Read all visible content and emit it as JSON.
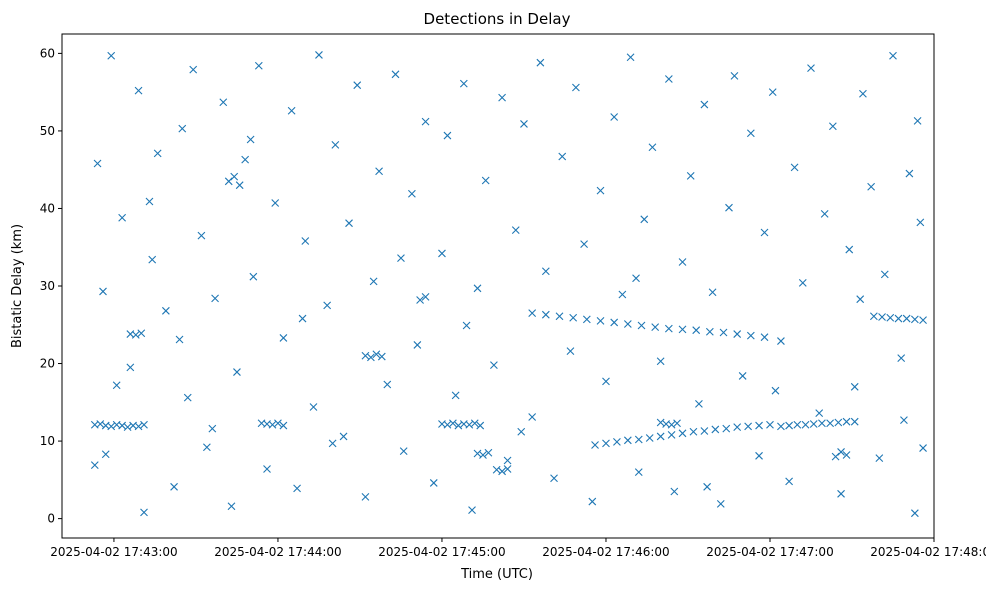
{
  "chart_data": {
    "type": "scatter",
    "title": "Detections in Delay",
    "xlabel": "Time (UTC)",
    "ylabel": "Bistatic Delay (km)",
    "marker": "x",
    "color": "#1f77b4",
    "grid": false,
    "legend": "none",
    "x_axis_type": "datetime",
    "xlim": [
      "2025-04-02 17:42:41",
      "2025-04-02 17:48:00"
    ],
    "ylim": [
      -2.5,
      62.5
    ],
    "x_ticks": [
      "2025-04-02 17:43:00",
      "2025-04-02 17:44:00",
      "2025-04-02 17:45:00",
      "2025-04-02 17:46:00",
      "2025-04-02 17:47:00",
      "2025-04-02 17:48:00"
    ],
    "y_ticks": [
      "0",
      "10",
      "20",
      "30",
      "40",
      "50",
      "60"
    ],
    "series": [
      {
        "points": [
          [
            "2025-04-02 17:42:53",
            12.1
          ],
          [
            "2025-04-02 17:42:55",
            12.2
          ],
          [
            "2025-04-02 17:42:57",
            12.0
          ],
          [
            "2025-04-02 17:42:59",
            11.9
          ],
          [
            "2025-04-02 17:43:01",
            12.1
          ],
          [
            "2025-04-02 17:43:03",
            12.0
          ],
          [
            "2025-04-02 17:43:05",
            11.8
          ],
          [
            "2025-04-02 17:43:07",
            12.0
          ],
          [
            "2025-04-02 17:43:09",
            11.9
          ],
          [
            "2025-04-02 17:43:11",
            12.1
          ],
          [
            "2025-04-02 17:43:54",
            12.3
          ],
          [
            "2025-04-02 17:43:56",
            12.2
          ],
          [
            "2025-04-02 17:43:58",
            12.1
          ],
          [
            "2025-04-02 17:44:00",
            12.3
          ],
          [
            "2025-04-02 17:44:02",
            12.0
          ],
          [
            "2025-04-02 17:45:00",
            12.2
          ],
          [
            "2025-04-02 17:45:02",
            12.1
          ],
          [
            "2025-04-02 17:45:04",
            12.3
          ],
          [
            "2025-04-02 17:45:06",
            12.0
          ],
          [
            "2025-04-02 17:45:08",
            12.2
          ],
          [
            "2025-04-02 17:45:10",
            12.1
          ],
          [
            "2025-04-02 17:45:12",
            12.3
          ],
          [
            "2025-04-02 17:45:14",
            12.0
          ],
          [
            "2025-04-02 17:46:20",
            12.4
          ],
          [
            "2025-04-02 17:46:22",
            12.2
          ],
          [
            "2025-04-02 17:46:24",
            12.1
          ],
          [
            "2025-04-02 17:46:26",
            12.3
          ],
          [
            "2025-04-02 17:47:04",
            11.9
          ],
          [
            "2025-04-02 17:47:07",
            12.0
          ],
          [
            "2025-04-02 17:47:10",
            12.1
          ],
          [
            "2025-04-02 17:47:13",
            12.1
          ],
          [
            "2025-04-02 17:47:16",
            12.2
          ],
          [
            "2025-04-02 17:47:19",
            12.3
          ],
          [
            "2025-04-02 17:47:22",
            12.3
          ],
          [
            "2025-04-02 17:47:25",
            12.4
          ],
          [
            "2025-04-02 17:47:28",
            12.5
          ],
          [
            "2025-04-02 17:47:31",
            12.5
          ],
          [
            "2025-04-02 17:45:33",
            26.5
          ],
          [
            "2025-04-02 17:45:38",
            26.3
          ],
          [
            "2025-04-02 17:45:43",
            26.1
          ],
          [
            "2025-04-02 17:45:48",
            25.9
          ],
          [
            "2025-04-02 17:45:53",
            25.7
          ],
          [
            "2025-04-02 17:45:58",
            25.5
          ],
          [
            "2025-04-02 17:46:03",
            25.3
          ],
          [
            "2025-04-02 17:46:08",
            25.1
          ],
          [
            "2025-04-02 17:46:13",
            24.9
          ],
          [
            "2025-04-02 17:46:18",
            24.7
          ],
          [
            "2025-04-02 17:46:23",
            24.5
          ],
          [
            "2025-04-02 17:46:28",
            24.4
          ],
          [
            "2025-04-02 17:46:33",
            24.3
          ],
          [
            "2025-04-02 17:46:38",
            24.1
          ],
          [
            "2025-04-02 17:46:43",
            24.0
          ],
          [
            "2025-04-02 17:46:48",
            23.8
          ],
          [
            "2025-04-02 17:46:53",
            23.6
          ],
          [
            "2025-04-02 17:46:58",
            23.4
          ],
          [
            "2025-04-02 17:45:56",
            9.5
          ],
          [
            "2025-04-02 17:46:00",
            9.7
          ],
          [
            "2025-04-02 17:46:04",
            9.9
          ],
          [
            "2025-04-02 17:46:08",
            10.1
          ],
          [
            "2025-04-02 17:46:12",
            10.2
          ],
          [
            "2025-04-02 17:46:16",
            10.4
          ],
          [
            "2025-04-02 17:46:20",
            10.6
          ],
          [
            "2025-04-02 17:46:24",
            10.8
          ],
          [
            "2025-04-02 17:46:28",
            11.0
          ],
          [
            "2025-04-02 17:46:32",
            11.2
          ],
          [
            "2025-04-02 17:46:36",
            11.3
          ],
          [
            "2025-04-02 17:46:40",
            11.5
          ],
          [
            "2025-04-02 17:46:44",
            11.6
          ],
          [
            "2025-04-02 17:46:48",
            11.8
          ],
          [
            "2025-04-02 17:46:52",
            11.9
          ],
          [
            "2025-04-02 17:46:56",
            12.0
          ],
          [
            "2025-04-02 17:47:00",
            12.1
          ],
          [
            "2025-04-02 17:47:38",
            26.1
          ],
          [
            "2025-04-02 17:47:41",
            26.0
          ],
          [
            "2025-04-02 17:47:44",
            25.9
          ],
          [
            "2025-04-02 17:47:47",
            25.8
          ],
          [
            "2025-04-02 17:47:50",
            25.8
          ],
          [
            "2025-04-02 17:47:53",
            25.7
          ],
          [
            "2025-04-02 17:47:56",
            25.6
          ],
          [
            "2025-04-02 17:44:32",
            21.0
          ],
          [
            "2025-04-02 17:44:34",
            20.8
          ],
          [
            "2025-04-02 17:44:36",
            21.2
          ],
          [
            "2025-04-02 17:44:38",
            20.9
          ],
          [
            "2025-04-02 17:43:06",
            23.8
          ],
          [
            "2025-04-02 17:43:08",
            23.7
          ],
          [
            "2025-04-02 17:43:10",
            23.9
          ],
          [
            "2025-04-02 17:45:13",
            8.4
          ],
          [
            "2025-04-02 17:45:15",
            8.2
          ],
          [
            "2025-04-02 17:45:17",
            8.5
          ],
          [
            "2025-04-02 17:45:20",
            6.3
          ],
          [
            "2025-04-02 17:45:22",
            6.1
          ],
          [
            "2025-04-02 17:45:24",
            6.4
          ],
          [
            "2025-04-02 17:47:24",
            8.0
          ],
          [
            "2025-04-02 17:47:26",
            8.6
          ],
          [
            "2025-04-02 17:47:28",
            8.2
          ],
          [
            "2025-04-02 17:43:42",
            43.5
          ],
          [
            "2025-04-02 17:43:44",
            44.1
          ],
          [
            "2025-04-02 17:43:46",
            43.0
          ],
          [
            "2025-04-02 17:44:52",
            28.2
          ],
          [
            "2025-04-02 17:44:54",
            28.6
          ],
          [
            "2025-04-02 17:42:53",
            6.9
          ],
          [
            "2025-04-02 17:42:57",
            8.3
          ],
          [
            "2025-04-02 17:42:59",
            59.7
          ],
          [
            "2025-04-02 17:43:03",
            38.8
          ],
          [
            "2025-04-02 17:43:06",
            19.5
          ],
          [
            "2025-04-02 17:43:09",
            55.2
          ],
          [
            "2025-04-02 17:43:11",
            0.8
          ],
          [
            "2025-04-02 17:43:14",
            33.4
          ],
          [
            "2025-04-02 17:43:16",
            47.1
          ],
          [
            "2025-04-02 17:43:19",
            26.8
          ],
          [
            "2025-04-02 17:43:22",
            4.1
          ],
          [
            "2025-04-02 17:43:25",
            50.3
          ],
          [
            "2025-04-02 17:43:27",
            15.6
          ],
          [
            "2025-04-02 17:43:29",
            57.9
          ],
          [
            "2025-04-02 17:43:32",
            36.5
          ],
          [
            "2025-04-02 17:43:34",
            9.2
          ],
          [
            "2025-04-02 17:43:37",
            28.4
          ],
          [
            "2025-04-02 17:43:40",
            53.7
          ],
          [
            "2025-04-02 17:43:43",
            1.6
          ],
          [
            "2025-04-02 17:43:45",
            18.9
          ],
          [
            "2025-04-02 17:43:48",
            46.3
          ],
          [
            "2025-04-02 17:43:51",
            31.2
          ],
          [
            "2025-04-02 17:43:53",
            58.4
          ],
          [
            "2025-04-02 17:43:56",
            6.4
          ],
          [
            "2025-04-02 17:43:59",
            40.7
          ],
          [
            "2025-04-02 17:44:02",
            23.3
          ],
          [
            "2025-04-02 17:44:05",
            52.6
          ],
          [
            "2025-04-02 17:44:07",
            3.9
          ],
          [
            "2025-04-02 17:44:10",
            35.8
          ],
          [
            "2025-04-02 17:44:13",
            14.4
          ],
          [
            "2025-04-02 17:44:15",
            59.8
          ],
          [
            "2025-04-02 17:44:18",
            27.5
          ],
          [
            "2025-04-02 17:44:21",
            48.2
          ],
          [
            "2025-04-02 17:44:24",
            10.6
          ],
          [
            "2025-04-02 17:44:26",
            38.1
          ],
          [
            "2025-04-02 17:44:29",
            55.9
          ],
          [
            "2025-04-02 17:44:32",
            2.8
          ],
          [
            "2025-04-02 17:44:35",
            30.6
          ],
          [
            "2025-04-02 17:44:37",
            44.8
          ],
          [
            "2025-04-02 17:44:40",
            17.3
          ],
          [
            "2025-04-02 17:44:43",
            57.3
          ],
          [
            "2025-04-02 17:44:46",
            8.7
          ],
          [
            "2025-04-02 17:44:49",
            41.9
          ],
          [
            "2025-04-02 17:44:51",
            22.4
          ],
          [
            "2025-04-02 17:44:54",
            51.2
          ],
          [
            "2025-04-02 17:44:57",
            4.6
          ],
          [
            "2025-04-02 17:45:00",
            34.2
          ],
          [
            "2025-04-02 17:45:02",
            49.4
          ],
          [
            "2025-04-02 17:45:05",
            15.9
          ],
          [
            "2025-04-02 17:45:08",
            56.1
          ],
          [
            "2025-04-02 17:45:11",
            1.1
          ],
          [
            "2025-04-02 17:45:13",
            29.7
          ],
          [
            "2025-04-02 17:45:16",
            43.6
          ],
          [
            "2025-04-02 17:45:19",
            19.8
          ],
          [
            "2025-04-02 17:45:22",
            54.3
          ],
          [
            "2025-04-02 17:45:24",
            7.5
          ],
          [
            "2025-04-02 17:45:27",
            37.2
          ],
          [
            "2025-04-02 17:45:30",
            50.9
          ],
          [
            "2025-04-02 17:45:33",
            13.1
          ],
          [
            "2025-04-02 17:45:36",
            58.8
          ],
          [
            "2025-04-02 17:45:38",
            31.9
          ],
          [
            "2025-04-02 17:45:41",
            5.2
          ],
          [
            "2025-04-02 17:45:44",
            46.7
          ],
          [
            "2025-04-02 17:45:47",
            21.6
          ],
          [
            "2025-04-02 17:45:49",
            55.6
          ],
          [
            "2025-04-02 17:45:52",
            35.4
          ],
          [
            "2025-04-02 17:45:55",
            2.2
          ],
          [
            "2025-04-02 17:45:58",
            42.3
          ],
          [
            "2025-04-02 17:46:00",
            17.7
          ],
          [
            "2025-04-02 17:46:03",
            51.8
          ],
          [
            "2025-04-02 17:46:06",
            28.9
          ],
          [
            "2025-04-02 17:46:09",
            59.5
          ],
          [
            "2025-04-02 17:46:12",
            6.0
          ],
          [
            "2025-04-02 17:46:14",
            38.6
          ],
          [
            "2025-04-02 17:46:17",
            47.9
          ],
          [
            "2025-04-02 17:46:20",
            20.3
          ],
          [
            "2025-04-02 17:46:23",
            56.7
          ],
          [
            "2025-04-02 17:46:25",
            3.5
          ],
          [
            "2025-04-02 17:46:28",
            33.1
          ],
          [
            "2025-04-02 17:46:31",
            44.2
          ],
          [
            "2025-04-02 17:46:34",
            14.8
          ],
          [
            "2025-04-02 17:46:36",
            53.4
          ],
          [
            "2025-04-02 17:46:39",
            29.2
          ],
          [
            "2025-04-02 17:46:42",
            1.9
          ],
          [
            "2025-04-02 17:46:45",
            40.1
          ],
          [
            "2025-04-02 17:46:47",
            57.1
          ],
          [
            "2025-04-02 17:46:50",
            18.4
          ],
          [
            "2025-04-02 17:46:53",
            49.7
          ],
          [
            "2025-04-02 17:46:56",
            8.1
          ],
          [
            "2025-04-02 17:46:58",
            36.9
          ],
          [
            "2025-04-02 17:47:01",
            55.0
          ],
          [
            "2025-04-02 17:47:04",
            22.9
          ],
          [
            "2025-04-02 17:47:07",
            4.8
          ],
          [
            "2025-04-02 17:47:09",
            45.3
          ],
          [
            "2025-04-02 17:47:12",
            30.4
          ],
          [
            "2025-04-02 17:47:15",
            58.1
          ],
          [
            "2025-04-02 17:47:18",
            13.6
          ],
          [
            "2025-04-02 17:47:20",
            39.3
          ],
          [
            "2025-04-02 17:47:23",
            50.6
          ],
          [
            "2025-04-02 17:47:26",
            3.2
          ],
          [
            "2025-04-02 17:47:29",
            34.7
          ],
          [
            "2025-04-02 17:47:31",
            17.0
          ],
          [
            "2025-04-02 17:47:34",
            54.8
          ],
          [
            "2025-04-02 17:47:37",
            42.8
          ],
          [
            "2025-04-02 17:47:40",
            7.8
          ],
          [
            "2025-04-02 17:47:42",
            31.5
          ],
          [
            "2025-04-02 17:47:45",
            59.7
          ],
          [
            "2025-04-02 17:47:48",
            20.7
          ],
          [
            "2025-04-02 17:47:51",
            44.5
          ],
          [
            "2025-04-02 17:47:53",
            0.7
          ],
          [
            "2025-04-02 17:47:55",
            38.2
          ],
          [
            "2025-04-02 17:47:56",
            9.1
          ],
          [
            "2025-04-02 17:47:54",
            51.3
          ],
          [
            "2025-04-02 17:42:54",
            45.8
          ],
          [
            "2025-04-02 17:42:56",
            29.3
          ],
          [
            "2025-04-02 17:43:01",
            17.2
          ],
          [
            "2025-04-02 17:43:13",
            40.9
          ],
          [
            "2025-04-02 17:43:24",
            23.1
          ],
          [
            "2025-04-02 17:43:36",
            11.6
          ],
          [
            "2025-04-02 17:43:50",
            48.9
          ],
          [
            "2025-04-02 17:44:09",
            25.8
          ],
          [
            "2025-04-02 17:44:20",
            9.7
          ],
          [
            "2025-04-02 17:44:45",
            33.6
          ],
          [
            "2025-04-02 17:45:09",
            24.9
          ],
          [
            "2025-04-02 17:45:29",
            11.2
          ],
          [
            "2025-04-02 17:46:11",
            31.0
          ],
          [
            "2025-04-02 17:46:37",
            4.1
          ],
          [
            "2025-04-02 17:47:02",
            16.5
          ],
          [
            "2025-04-02 17:47:33",
            28.3
          ],
          [
            "2025-04-02 17:47:49",
            12.7
          ]
        ]
      }
    ]
  }
}
